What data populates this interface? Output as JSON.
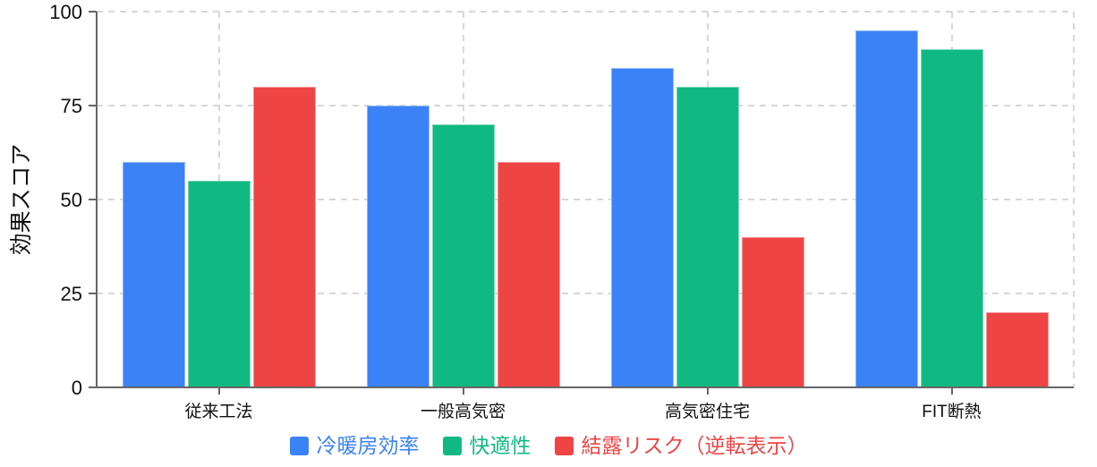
{
  "chart_data": {
    "type": "bar",
    "title": "",
    "xlabel": "",
    "ylabel": "効果スコア",
    "categories": [
      "従来工法",
      "一般高気密",
      "高気密住宅",
      "FIT断熱"
    ],
    "series": [
      {
        "name": "冷暖房効率",
        "color": "#3B82F6",
        "values": [
          60,
          75,
          85,
          95
        ]
      },
      {
        "name": "快適性",
        "color": "#10B981",
        "values": [
          55,
          70,
          80,
          90
        ]
      },
      {
        "name": "結露リスク（逆転表示）",
        "color": "#EF4444",
        "values": [
          80,
          60,
          40,
          20
        ]
      }
    ],
    "ylim": [
      0,
      100
    ],
    "yticks": [
      0,
      25,
      50,
      75,
      100
    ],
    "grid": {
      "horizontal": true,
      "vertical": true,
      "style": "dashed",
      "color": "#D7D7D7"
    },
    "legend_position": "bottom",
    "axis_color": "#666666",
    "tick_label_color": "#111111"
  }
}
